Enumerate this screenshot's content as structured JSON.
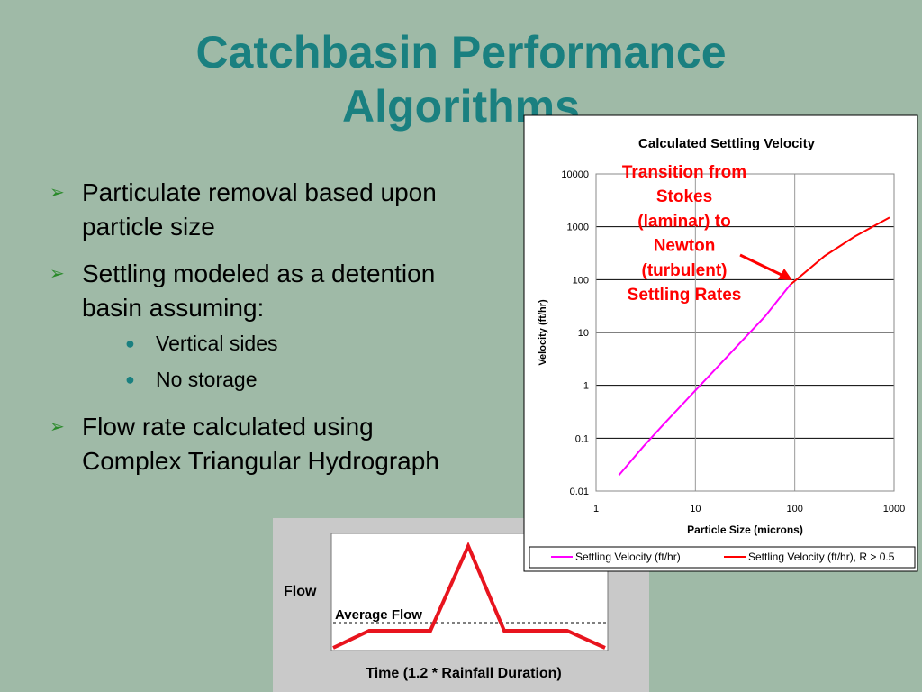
{
  "slide": {
    "title": "Catchbasin Performance Algorithms",
    "bullets": [
      {
        "text": "Particulate removal based upon particle size"
      },
      {
        "text": "Settling modeled as a detention basin assuming:",
        "sub": [
          "Vertical sides",
          "No storage"
        ]
      },
      {
        "text": "Flow rate calculated using Complex Triangular Hydrograph"
      }
    ]
  },
  "hydrograph": {
    "y_label": "Flow",
    "line_label": "Average Flow",
    "x_label": "Time (1.2 * Rainfall Duration)"
  },
  "chart_data": {
    "type": "line",
    "title": "Calculated Settling Velocity",
    "x_label": "Particle Size (microns)",
    "y_label": "Velocity (ft/hr)",
    "xscale": "log",
    "yscale": "log",
    "xlim": [
      1,
      1000
    ],
    "ylim": [
      0.01,
      10000
    ],
    "xticks": [
      1,
      10,
      100,
      1000
    ],
    "yticks": [
      0.01,
      0.1,
      1,
      10,
      100,
      1000,
      10000
    ],
    "grid": true,
    "annotation": [
      "Transition from",
      "Stokes",
      "(laminar) to",
      "Newton",
      "(turbulent)",
      "Settling Rates"
    ],
    "series": [
      {
        "name": "Settling Velocity (ft/hr)",
        "color": "#ff00ff",
        "x": [
          1.7,
          3,
          5,
          10,
          20,
          50,
          90
        ],
        "values": [
          0.02,
          0.07,
          0.2,
          0.8,
          3.2,
          20,
          80
        ]
      },
      {
        "name": "Settling Velocity (ft/hr), R > 0.5",
        "color": "#ff0000",
        "x": [
          90,
          200,
          400,
          900
        ],
        "values": [
          80,
          280,
          650,
          1500
        ]
      }
    ]
  }
}
